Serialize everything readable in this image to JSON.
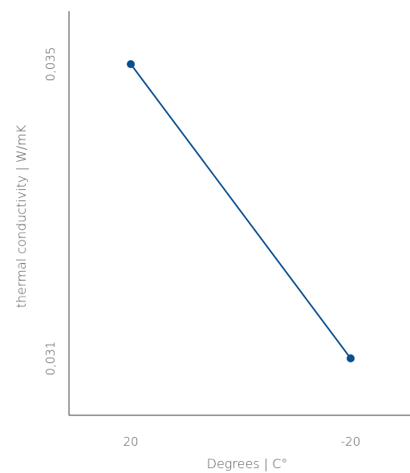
{
  "chart_data": {
    "type": "line",
    "categories": [
      "20",
      "-20"
    ],
    "x": [
      20,
      -20
    ],
    "series": [
      {
        "values": [
          0.035,
          0.031
        ]
      }
    ],
    "xlabel": "Degrees | C°",
    "ylabel": "thermal conductivity | W/mK",
    "yticks": [
      "0,035",
      "0,031"
    ],
    "ylim": [
      0.0305,
      0.0354
    ],
    "grid": false,
    "legend": "none",
    "colors": {
      "series": "#0a4f8f",
      "axis": "#333333",
      "text": "#555555"
    }
  }
}
